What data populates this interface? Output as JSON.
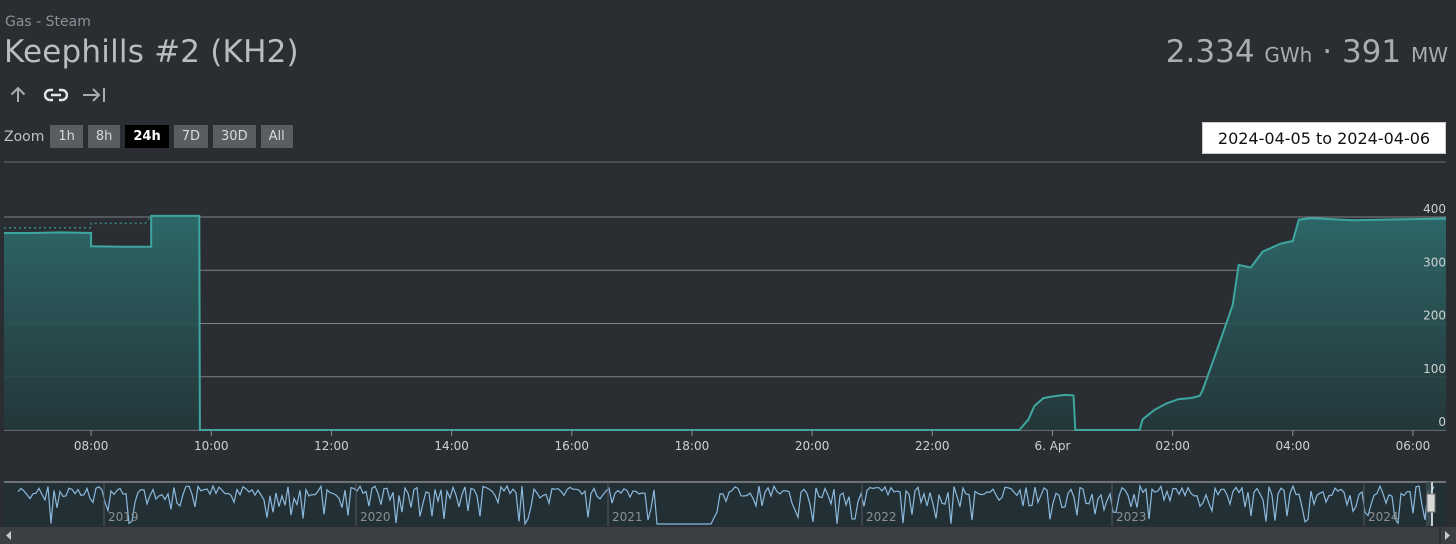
{
  "header": {
    "category": "Gas - Steam",
    "title": "Keephills #2 (KH2)",
    "energy_value": "2.334",
    "energy_unit": "GWh",
    "separator": "·",
    "power_value": "391",
    "power_unit": "MW"
  },
  "icons": [
    "arrow-up-icon",
    "link-icon",
    "arrow-right-to-line-icon"
  ],
  "zoom": {
    "label": "Zoom",
    "buttons": [
      "1h",
      "8h",
      "24h",
      "7D",
      "30D",
      "All"
    ],
    "active": "24h"
  },
  "date_range": "2024-04-05 to 2024-04-06",
  "colors": {
    "background": "#2a2d31",
    "series": "#3ea6a0",
    "navigator": "#8cb8dc"
  },
  "chart_data": {
    "type": "area",
    "x_unit": "hours",
    "xlim": [
      6.55,
      30.55
    ],
    "ylim": [
      0,
      400
    ],
    "y_ticks": [
      0,
      100,
      200,
      300,
      400
    ],
    "x_ticks": [
      {
        "value": 8,
        "label": "08:00"
      },
      {
        "value": 10,
        "label": "10:00"
      },
      {
        "value": 12,
        "label": "12:00"
      },
      {
        "value": 14,
        "label": "14:00"
      },
      {
        "value": 16,
        "label": "16:00"
      },
      {
        "value": 18,
        "label": "18:00"
      },
      {
        "value": 20,
        "label": "20:00"
      },
      {
        "value": 22,
        "label": "22:00"
      },
      {
        "value": 24,
        "label": "6. Apr"
      },
      {
        "value": 26,
        "label": "02:00"
      },
      {
        "value": 28,
        "label": "04:00"
      },
      {
        "value": 30,
        "label": "06:00"
      }
    ],
    "series": [
      {
        "type": "area",
        "color": "#3ea6a0",
        "points": [
          [
            6.55,
            370
          ],
          [
            7.0,
            370
          ],
          [
            7.5,
            371
          ],
          [
            8.0,
            370
          ],
          [
            8.0,
            345
          ],
          [
            8.5,
            344
          ],
          [
            9.0,
            344
          ],
          [
            9.0,
            402
          ],
          [
            9.5,
            402
          ],
          [
            9.8,
            402
          ],
          [
            9.81,
            0
          ],
          [
            23.45,
            0
          ],
          [
            23.6,
            20
          ],
          [
            23.7,
            45
          ],
          [
            23.85,
            60
          ],
          [
            24.0,
            63
          ],
          [
            24.2,
            66
          ],
          [
            24.35,
            65
          ],
          [
            24.38,
            0
          ],
          [
            25.45,
            0
          ],
          [
            25.5,
            20
          ],
          [
            25.7,
            38
          ],
          [
            25.9,
            50
          ],
          [
            26.1,
            58
          ],
          [
            26.3,
            60
          ],
          [
            26.45,
            64
          ],
          [
            26.5,
            75
          ],
          [
            26.8,
            170
          ],
          [
            27.0,
            235
          ],
          [
            27.1,
            310
          ],
          [
            27.3,
            305
          ],
          [
            27.4,
            320
          ],
          [
            27.5,
            335
          ],
          [
            27.8,
            350
          ],
          [
            28.0,
            355
          ],
          [
            28.1,
            395
          ],
          [
            28.3,
            398
          ],
          [
            29.0,
            394
          ],
          [
            30.0,
            396
          ],
          [
            30.55,
            397
          ]
        ]
      },
      {
        "type": "line-dotted",
        "color": "#2f8a86",
        "points": [
          [
            6.55,
            380
          ],
          [
            8.0,
            380
          ],
          [
            8.0,
            388
          ],
          [
            8.9,
            388
          ],
          [
            9.0,
            402
          ]
        ]
      }
    ],
    "navigator": {
      "x_labels": [
        "2019",
        "2020",
        "2021",
        "2022",
        "2023",
        "2024"
      ],
      "color": "#8cb8dc"
    }
  }
}
